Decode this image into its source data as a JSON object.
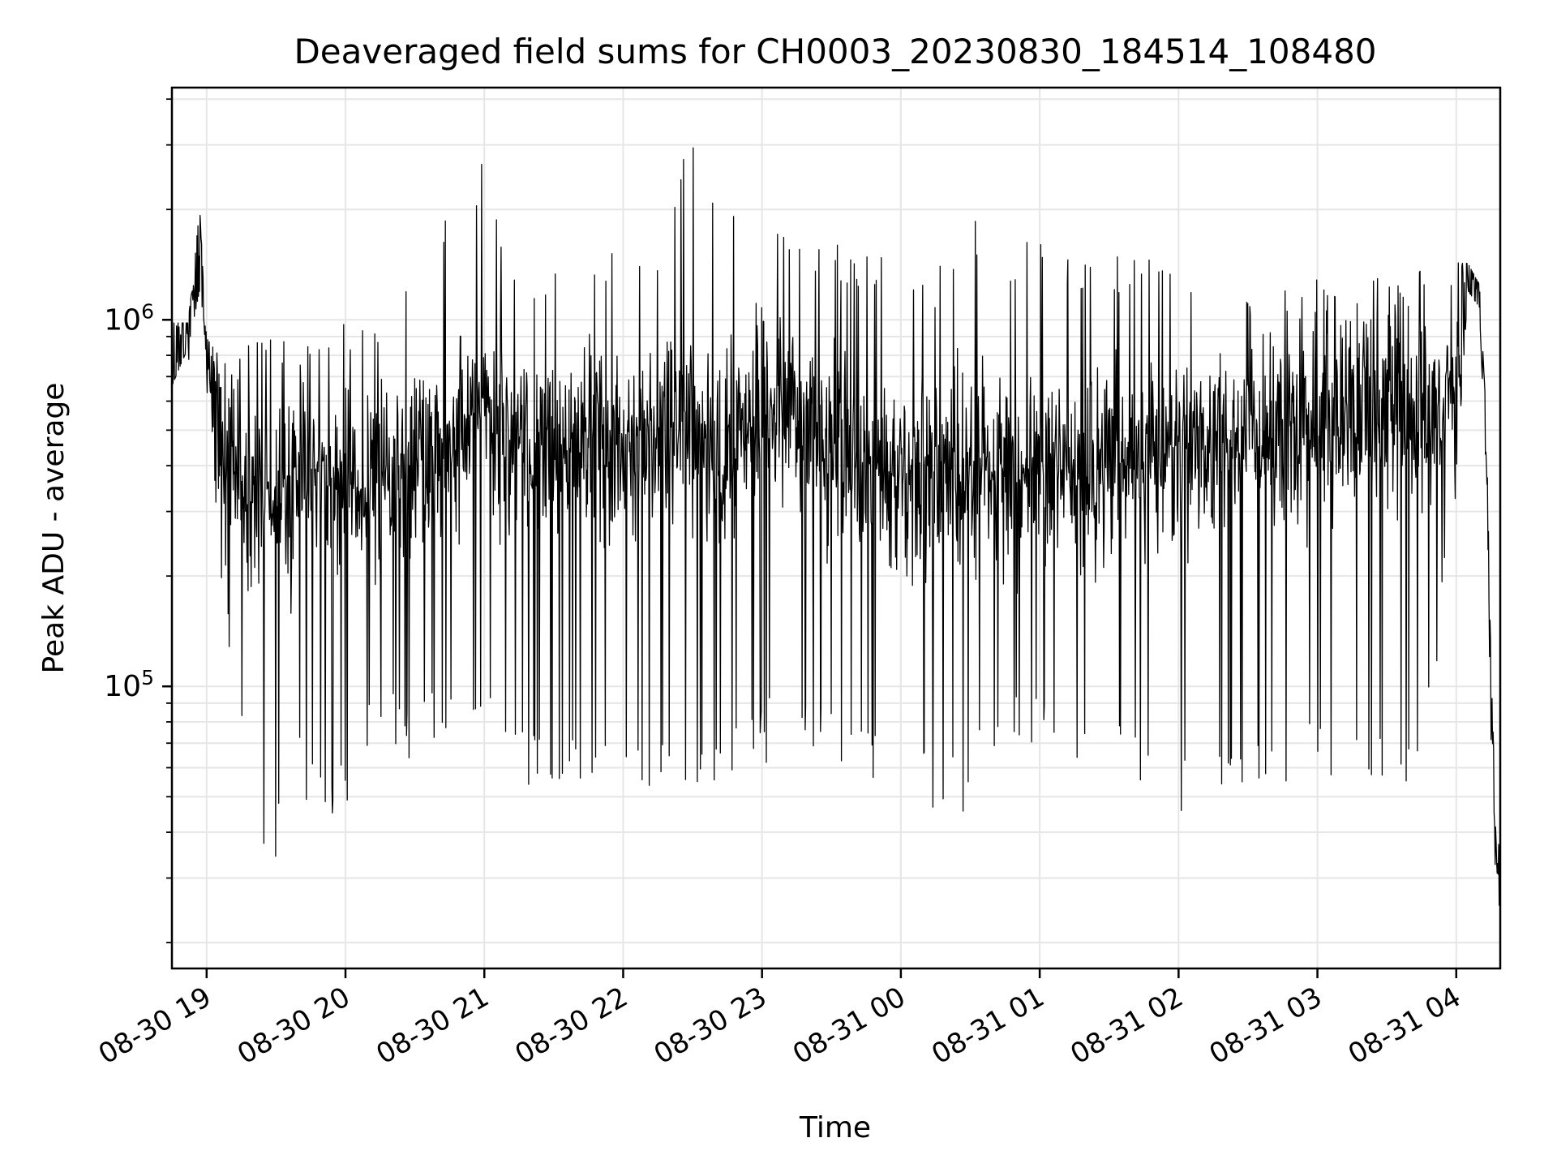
{
  "chart_data": {
    "type": "line",
    "title": "Deaveraged field sums for CH0003_20230830_184514_108480",
    "xlabel": "Time",
    "ylabel": "Peak ADU - average",
    "y_scale": "log",
    "ylim": [
      17000,
      4300000
    ],
    "xlim": [
      "2023-08-30 18:45",
      "2023-08-31 04:19"
    ],
    "x_ticks": [
      "2023-08-30 19:00",
      "2023-08-30 20:00",
      "2023-08-30 21:00",
      "2023-08-30 22:00",
      "2023-08-30 23:00",
      "2023-08-31 00:00",
      "2023-08-31 01:00",
      "2023-08-31 02:00",
      "2023-08-31 03:00",
      "2023-08-31 04:00"
    ],
    "x_tick_labels": [
      "08-30 19",
      "08-30 20",
      "08-30 21",
      "08-30 22",
      "08-30 23",
      "08-31 00",
      "08-31 01",
      "08-31 02",
      "08-31 03",
      "08-31 04"
    ],
    "y_ticks": [
      100000,
      1000000
    ],
    "y_tick_labels": [
      {
        "base": "10",
        "exp": "5"
      },
      {
        "base": "10",
        "exp": "6"
      }
    ],
    "grid": true,
    "line_color": "#000000",
    "series": [
      {
        "x": [
          "2023-08-30 18:45",
          "2023-08-30 18:52",
          "2023-08-30 18:57",
          "2023-08-30 19:00",
          "2023-08-30 19:05",
          "2023-08-30 19:10",
          "2023-08-30 19:15",
          "2023-08-30 19:20",
          "2023-08-30 19:25",
          "2023-08-30 19:30",
          "2023-08-30 19:35",
          "2023-08-30 19:45",
          "2023-08-30 20:00",
          "2023-08-30 20:15",
          "2023-08-30 20:30",
          "2023-08-30 20:45",
          "2023-08-30 21:00",
          "2023-08-30 21:15",
          "2023-08-30 21:30",
          "2023-08-30 21:45",
          "2023-08-30 22:00",
          "2023-08-30 22:15",
          "2023-08-30 22:30",
          "2023-08-30 22:45",
          "2023-08-30 23:00",
          "2023-08-30 23:15",
          "2023-08-30 23:30",
          "2023-08-30 23:45",
          "2023-08-31 00:00",
          "2023-08-31 00:15",
          "2023-08-31 00:30",
          "2023-08-31 00:45",
          "2023-08-31 01:00",
          "2023-08-31 01:15",
          "2023-08-31 01:30",
          "2023-08-31 01:45",
          "2023-08-31 02:00",
          "2023-08-31 02:15",
          "2023-08-31 02:30",
          "2023-08-31 02:45",
          "2023-08-31 03:00",
          "2023-08-31 03:15",
          "2023-08-31 03:30",
          "2023-08-31 03:45",
          "2023-08-31 04:00",
          "2023-08-31 04:05",
          "2023-08-31 04:10",
          "2023-08-31 04:13",
          "2023-08-31 04:15",
          "2023-08-31 04:17",
          "2023-08-31 04:19"
        ],
        "median": [
          800000,
          1000000,
          1700000,
          900000,
          500000,
          420000,
          380000,
          320000,
          300000,
          320000,
          330000,
          380000,
          380000,
          350000,
          420000,
          480000,
          600000,
          420000,
          450000,
          500000,
          420000,
          480000,
          500000,
          420000,
          650000,
          550000,
          430000,
          400000,
          360000,
          380000,
          380000,
          400000,
          400000,
          380000,
          420000,
          430000,
          440000,
          460000,
          480000,
          500000,
          520000,
          540000,
          560000,
          560000,
          650000,
          1200000,
          1300000,
          500000,
          100000,
          40000,
          25000
        ],
        "high": [
          1100000,
          1100000,
          2250000,
          1000000,
          900000,
          900000,
          950000,
          1100000,
          900000,
          950000,
          900000,
          1000000,
          1000000,
          1000000,
          1800000,
          2100000,
          2900000,
          1400000,
          1500000,
          1500000,
          1800000,
          1700000,
          3500000,
          2000000,
          2000000,
          2000000,
          1600000,
          1600000,
          1500000,
          1400000,
          2000000,
          1500000,
          1900000,
          1600000,
          1500000,
          1500000,
          1400000,
          1300000,
          1300000,
          1300000,
          1300000,
          1300000,
          1300000,
          1400000,
          1600000,
          1600000,
          1400000,
          600000,
          130000,
          50000,
          40000
        ],
        "low": [
          550000,
          700000,
          1000000,
          550000,
          220000,
          120000,
          70000,
          40000,
          35000,
          30000,
          60000,
          45000,
          45000,
          70000,
          60000,
          70000,
          80000,
          55000,
          50000,
          55000,
          50000,
          55000,
          45000,
          50000,
          60000,
          70000,
          60000,
          50000,
          45000,
          45000,
          45000,
          70000,
          70000,
          55000,
          55000,
          50000,
          45000,
          50000,
          55000,
          50000,
          55000,
          50000,
          50000,
          55000,
          300000,
          1000000,
          900000,
          300000,
          60000,
          30000,
          19000
        ],
        "density": 1.0
      }
    ]
  }
}
